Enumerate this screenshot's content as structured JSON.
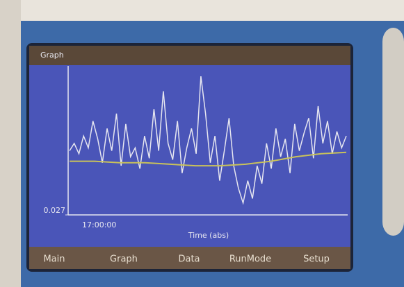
{
  "screen": {
    "title": "Graph",
    "tabs": [
      "Main",
      "Graph",
      "Data",
      "RunMode",
      "Setup"
    ]
  },
  "chart_data": {
    "type": "line",
    "xlabel": "Time (abs)",
    "x_start_label": "17:00:00",
    "ylim": [
      0.027,
      0.127
    ],
    "yticks": [
      0.027
    ],
    "series": [
      {
        "color": "#e6e6f0",
        "values": [
          0.07,
          0.075,
          0.068,
          0.08,
          0.072,
          0.09,
          0.078,
          0.062,
          0.085,
          0.07,
          0.095,
          0.06,
          0.088,
          0.066,
          0.072,
          0.058,
          0.08,
          0.065,
          0.098,
          0.07,
          0.11,
          0.075,
          0.064,
          0.09,
          0.055,
          0.072,
          0.085,
          0.068,
          0.12,
          0.095,
          0.062,
          0.08,
          0.05,
          0.07,
          0.092,
          0.06,
          0.045,
          0.035,
          0.05,
          0.038,
          0.06,
          0.048,
          0.075,
          0.058,
          0.085,
          0.066,
          0.078,
          0.055,
          0.088,
          0.07,
          0.082,
          0.092,
          0.065,
          0.1,
          0.075,
          0.09,
          0.068,
          0.083,
          0.072,
          0.08
        ]
      },
      {
        "color": "#c9c25a",
        "values": [
          0.063,
          0.063,
          0.062,
          0.062,
          0.061,
          0.06,
          0.06,
          0.061,
          0.063,
          0.066,
          0.068,
          0.069
        ]
      }
    ]
  }
}
